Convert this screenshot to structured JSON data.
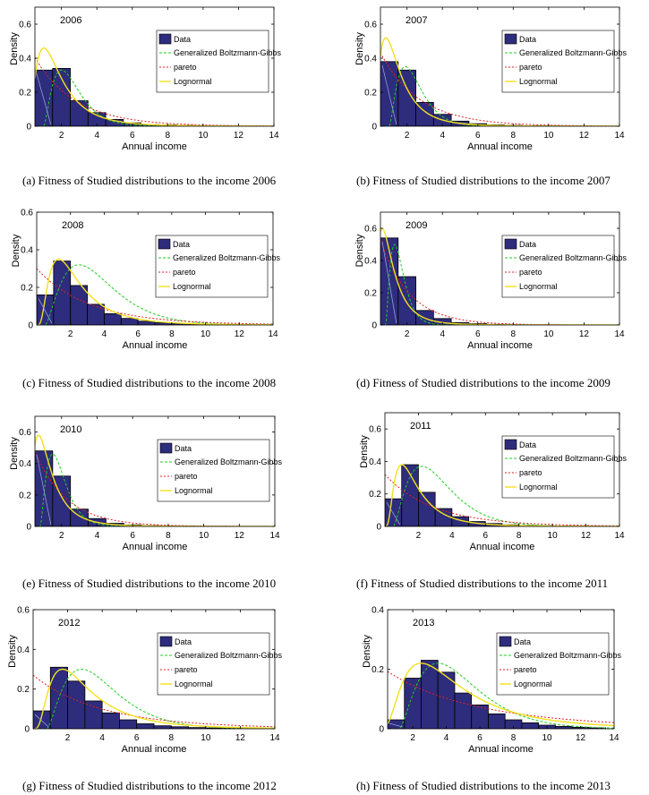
{
  "chart_data": [
    {
      "type": "bar",
      "title": "2006",
      "caption": "(a) Fitness of Studied distributions to the income 2006",
      "xlabel": "Annual income",
      "ylabel": "Density",
      "xlim": [
        0.5,
        14
      ],
      "ylim": [
        0,
        0.7
      ],
      "xticks": [
        2,
        4,
        6,
        8,
        10,
        12,
        14
      ],
      "yticks": [
        0,
        0.2,
        0.4,
        0.6
      ],
      "bin_width": 1,
      "bins_x": [
        0.5,
        1.5,
        2.5,
        3.5,
        4.5,
        5.5,
        6.5,
        7.5,
        8.5,
        9.5,
        10.5,
        11.5,
        12.5
      ],
      "values": [
        0.33,
        0.34,
        0.15,
        0.08,
        0.04,
        0.02,
        0.01,
        0.008,
        0.005,
        0.003,
        0.002,
        0.001,
        0.001
      ],
      "legend": [
        "Data",
        "Generalized Boltzmann-Gibbs",
        "pareto",
        "Lognormal"
      ],
      "curves": {
        "gbg": {
          "peak": 0.33,
          "x0": 1.0,
          "mode": 2.0,
          "sigma": 1.6
        },
        "pareto": {
          "a": 0.42,
          "b": 0.8
        },
        "lognormal": {
          "mode": 1.0,
          "peak": 0.46
        }
      }
    },
    {
      "type": "bar",
      "title": "2007",
      "caption": "(b) Fitness of Studied distributions to the income 2007",
      "xlabel": "Annual income",
      "ylabel": "Density",
      "xlim": [
        0.5,
        14
      ],
      "ylim": [
        0,
        0.7
      ],
      "xticks": [
        2,
        4,
        6,
        8,
        10,
        12,
        14
      ],
      "yticks": [
        0,
        0.2,
        0.4,
        0.6
      ],
      "bin_width": 1,
      "bins_x": [
        0.5,
        1.5,
        2.5,
        3.5,
        4.5,
        5.5,
        6.5,
        7.5,
        8.5,
        9.5,
        10.5,
        11.5,
        12.5
      ],
      "values": [
        0.38,
        0.33,
        0.14,
        0.07,
        0.03,
        0.015,
        0.008,
        0.005,
        0.003,
        0.002,
        0.001,
        0.001,
        0.0005
      ],
      "legend": [
        "Data",
        "Generalized Boltzmann-Gibbs",
        "pareto",
        "Lognormal"
      ],
      "curves": {
        "gbg": {
          "peak": 0.35,
          "x0": 1.0,
          "mode": 1.9,
          "sigma": 1.6
        },
        "pareto": {
          "a": 0.45,
          "b": 0.85
        },
        "lognormal": {
          "mode": 0.8,
          "peak": 0.52
        }
      }
    },
    {
      "type": "bar",
      "title": "2008",
      "caption": "(c) Fitness of Studied distributions to the income 2008",
      "xlabel": "Annual income",
      "ylabel": "Density",
      "xlim": [
        0,
        14
      ],
      "ylim": [
        0,
        0.6
      ],
      "xticks": [
        2,
        4,
        6,
        8,
        10,
        12,
        14
      ],
      "yticks": [
        0,
        0.2,
        0.4,
        0.6
      ],
      "bin_width": 1,
      "bins_x": [
        0,
        1,
        2,
        3,
        4,
        5,
        6,
        7,
        8,
        9,
        10,
        11,
        12,
        13
      ],
      "values": [
        0.16,
        0.34,
        0.21,
        0.11,
        0.06,
        0.035,
        0.02,
        0.012,
        0.008,
        0.005,
        0.003,
        0.002,
        0.001,
        0.001
      ],
      "legend": [
        "Data",
        "Generalized Boltzmann-Gibbs",
        "pareto",
        "Lognormal"
      ],
      "curves": {
        "gbg": {
          "peak": 0.32,
          "x0": 0.5,
          "mode": 2.5,
          "sigma": 2.0
        },
        "pareto": {
          "a": 0.3,
          "b": 0.55
        },
        "lognormal": {
          "mode": 1.3,
          "peak": 0.35
        }
      }
    },
    {
      "type": "bar",
      "title": "2009",
      "caption": "(d) Fitness of Studied distributions to the income 2009",
      "xlabel": "Annual income",
      "ylabel": "Density",
      "xlim": [
        0.5,
        14
      ],
      "ylim": [
        0,
        0.7
      ],
      "xticks": [
        2,
        4,
        6,
        8,
        10,
        12,
        14
      ],
      "yticks": [
        0,
        0.2,
        0.4,
        0.6
      ],
      "bin_width": 1,
      "bins_x": [
        0.5,
        1.5,
        2.5,
        3.5,
        4.5,
        5.5,
        6.5,
        7.5,
        8.5,
        9.5,
        10.5,
        11.5,
        12.5
      ],
      "values": [
        0.54,
        0.3,
        0.09,
        0.04,
        0.015,
        0.008,
        0.004,
        0.002,
        0.001,
        0.001,
        0.0005,
        0.0003,
        0.0002
      ],
      "legend": [
        "Data",
        "Generalized Boltzmann-Gibbs",
        "pareto",
        "Lognormal"
      ],
      "curves": {
        "gbg": {
          "peak": 0.5,
          "x0": 0.8,
          "mode": 1.3,
          "sigma": 1.4
        },
        "pareto": {
          "a": 0.55,
          "b": 1.2
        },
        "lognormal": {
          "mode": 0.6,
          "peak": 0.6
        }
      }
    },
    {
      "type": "bar",
      "title": "2010",
      "caption": "(e) Fitness of Studied distributions to the income 2010",
      "xlabel": "Annual income",
      "ylabel": "Density",
      "xlim": [
        0.5,
        14
      ],
      "ylim": [
        0,
        0.7
      ],
      "xticks": [
        2,
        4,
        6,
        8,
        10,
        12,
        14
      ],
      "yticks": [
        0,
        0.2,
        0.4,
        0.6
      ],
      "bin_width": 1,
      "bins_x": [
        0.5,
        1.5,
        2.5,
        3.5,
        4.5,
        5.5,
        6.5,
        7.5,
        8.5,
        9.5,
        10.5,
        11.5,
        12.5
      ],
      "values": [
        0.48,
        0.32,
        0.11,
        0.05,
        0.02,
        0.01,
        0.005,
        0.003,
        0.002,
        0.001,
        0.001,
        0.0005,
        0.0003
      ],
      "legend": [
        "Data",
        "Generalized Boltzmann-Gibbs",
        "pareto",
        "Lognormal"
      ],
      "curves": {
        "gbg": {
          "peak": 0.46,
          "x0": 0.8,
          "mode": 1.5,
          "sigma": 1.5
        },
        "pareto": {
          "a": 0.5,
          "b": 1.1
        },
        "lognormal": {
          "mode": 0.7,
          "peak": 0.58
        }
      }
    },
    {
      "type": "bar",
      "title": "2011",
      "caption": "(f) Fitness of Studied distributions to the income 2011",
      "xlabel": "Annual income",
      "ylabel": "Density",
      "xlim": [
        0,
        14
      ],
      "ylim": [
        0,
        0.7
      ],
      "xticks": [
        2,
        4,
        6,
        8,
        10,
        12,
        14
      ],
      "yticks": [
        0,
        0.2,
        0.4,
        0.6
      ],
      "bin_width": 1,
      "bins_x": [
        0,
        1,
        2,
        3,
        4,
        5,
        6,
        7,
        8,
        9,
        10,
        11,
        12,
        13
      ],
      "values": [
        0.17,
        0.38,
        0.21,
        0.11,
        0.06,
        0.03,
        0.018,
        0.01,
        0.006,
        0.004,
        0.002,
        0.001,
        0.001,
        0.0005
      ],
      "legend": [
        "Data",
        "Generalized Boltzmann-Gibbs",
        "pareto",
        "Lognormal"
      ],
      "curves": {
        "gbg": {
          "peak": 0.37,
          "x0": 0.5,
          "mode": 2.2,
          "sigma": 1.9
        },
        "pareto": {
          "a": 0.32,
          "b": 0.6
        },
        "lognormal": {
          "mode": 1.0,
          "peak": 0.38
        }
      }
    },
    {
      "type": "bar",
      "title": "2012",
      "caption": "(g) Fitness of Studied distributions to the income 2012",
      "xlabel": "Annual income",
      "ylabel": "Density",
      "xlim": [
        0,
        14
      ],
      "ylim": [
        0,
        0.6
      ],
      "xticks": [
        2,
        4,
        6,
        8,
        10,
        12,
        14
      ],
      "yticks": [
        0,
        0.2,
        0.4,
        0.6
      ],
      "bin_width": 1,
      "bins_x": [
        0,
        1,
        2,
        3,
        4,
        5,
        6,
        7,
        8,
        9,
        10,
        11,
        12,
        13
      ],
      "values": [
        0.09,
        0.31,
        0.24,
        0.14,
        0.08,
        0.045,
        0.025,
        0.015,
        0.01,
        0.006,
        0.004,
        0.003,
        0.002,
        0.001
      ],
      "legend": [
        "Data",
        "Generalized Boltzmann-Gibbs",
        "pareto",
        "Lognormal"
      ],
      "curves": {
        "gbg": {
          "peak": 0.3,
          "x0": 0.8,
          "mode": 2.8,
          "sigma": 2.0
        },
        "pareto": {
          "a": 0.27,
          "b": 0.4
        },
        "lognormal": {
          "mode": 1.7,
          "peak": 0.3
        }
      }
    },
    {
      "type": "bar",
      "title": "2013",
      "caption": "(h) Fitness of Studied distributions to the income 2013",
      "xlabel": "Annual income",
      "ylabel": "Density",
      "xlim": [
        0.5,
        14
      ],
      "ylim": [
        0,
        0.4
      ],
      "xticks": [
        2,
        4,
        6,
        8,
        10,
        12,
        14
      ],
      "yticks": [
        0,
        0.2,
        0.4
      ],
      "bin_width": 1,
      "bins_x": [
        0.5,
        1.5,
        2.5,
        3.5,
        4.5,
        5.5,
        6.5,
        7.5,
        8.5,
        9.5,
        10.5,
        11.5,
        12.5
      ],
      "values": [
        0.03,
        0.17,
        0.23,
        0.19,
        0.12,
        0.08,
        0.05,
        0.03,
        0.02,
        0.012,
        0.008,
        0.005,
        0.003
      ],
      "legend": [
        "Data",
        "Generalized Boltzmann-Gibbs",
        "pareto",
        "Lognormal"
      ],
      "curves": {
        "gbg": {
          "peak": 0.22,
          "x0": 1.2,
          "mode": 3.5,
          "sigma": 2.6
        },
        "pareto": {
          "a": 0.2,
          "b": 0.25
        },
        "lognormal": {
          "mode": 2.5,
          "peak": 0.22
        }
      }
    }
  ],
  "colors": {
    "bar_fill": "#2e2c7c",
    "bar_stroke": "#000000",
    "gbg": "#22cc22",
    "pareto": "#e02020",
    "lognormal": "#f2e020",
    "axis": "#000000"
  }
}
